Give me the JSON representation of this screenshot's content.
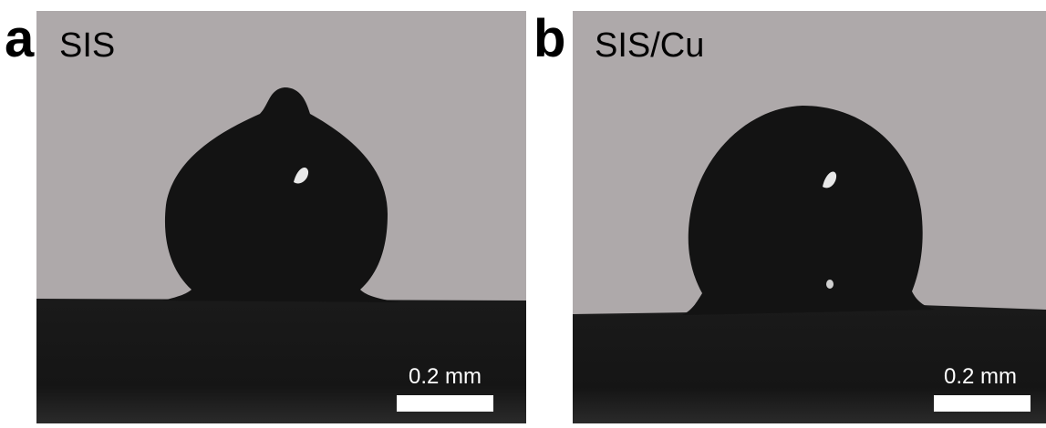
{
  "panels": [
    {
      "letter": "a",
      "title": "SIS",
      "scale_bar": "0.2 mm"
    },
    {
      "letter": "b",
      "title": "SIS/Cu",
      "scale_bar": "0.2 mm"
    }
  ]
}
